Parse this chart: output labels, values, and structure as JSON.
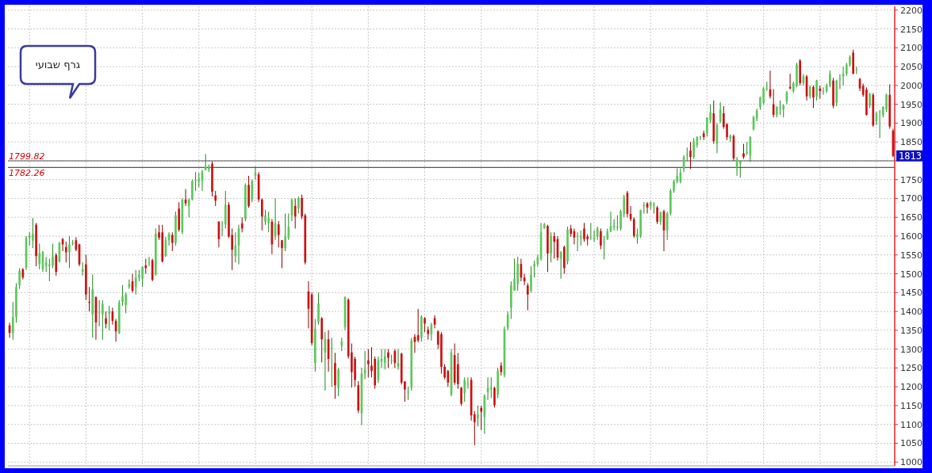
{
  "chart_data": {
    "type": "candlestick",
    "categories": [
      null,
      null,
      null,
      null,
      null,
      null,
      null,
      null,
      null,
      null,
      null,
      null,
      null,
      null,
      null,
      null,
      null,
      null,
      null,
      null,
      null,
      null,
      null,
      null,
      null,
      null,
      null,
      null,
      null,
      null,
      null,
      null,
      null,
      null,
      null,
      null,
      null,
      null,
      null,
      null,
      null,
      null,
      null,
      null,
      null,
      null,
      null,
      null,
      null,
      null,
      null,
      null,
      null,
      null,
      null,
      null,
      null,
      null,
      null,
      null,
      null,
      null,
      null,
      null,
      null,
      null,
      null,
      null,
      null,
      null,
      null,
      null,
      null,
      null,
      null,
      null,
      null,
      null,
      null,
      null,
      null,
      null,
      null,
      null,
      null,
      null,
      null,
      null,
      null,
      null,
      null,
      null,
      null,
      null,
      null,
      null,
      null,
      null,
      null,
      null,
      null,
      null,
      null,
      null,
      null,
      null,
      null,
      null,
      null,
      null,
      null,
      null,
      null,
      null,
      null,
      null,
      null,
      null,
      null,
      null,
      null,
      null,
      null,
      null,
      null,
      null,
      null,
      null,
      null,
      null,
      null,
      null,
      null,
      null,
      null,
      null,
      null,
      null,
      null,
      null,
      null,
      null,
      null,
      null,
      null,
      null,
      null,
      null,
      null,
      null,
      null,
      null,
      null,
      null,
      null,
      null,
      null,
      null,
      null,
      null,
      null,
      null,
      null,
      null,
      null,
      null,
      null,
      null,
      null,
      null,
      null,
      null,
      null,
      null,
      null,
      null,
      null,
      null,
      null,
      null,
      null,
      null,
      null,
      null,
      null,
      null,
      null,
      null,
      null,
      null,
      null,
      null,
      null,
      null,
      null,
      null,
      null,
      null,
      null,
      null,
      null,
      null,
      null,
      null,
      null,
      null,
      null,
      null,
      null,
      null,
      null,
      null,
      null,
      null,
      null,
      null,
      null,
      null,
      null,
      null,
      null,
      null,
      null,
      null,
      null,
      null,
      null,
      null,
      null,
      null,
      null,
      null,
      null,
      null,
      null,
      null,
      null,
      null,
      null,
      null,
      null,
      null,
      null,
      null,
      null,
      null,
      null,
      null,
      null,
      null,
      null,
      null,
      null,
      null,
      null,
      null,
      null,
      null,
      null,
      null,
      null,
      null,
      null,
      null,
      null,
      null,
      null
    ],
    "ohlc": [
      [
        1363,
        1370,
        1330,
        1343
      ],
      [
        1343,
        1425,
        1325,
        1385
      ],
      [
        1385,
        1475,
        1370,
        1465
      ],
      [
        1470,
        1515,
        1460,
        1508
      ],
      [
        1512,
        1515,
        1485,
        1490
      ],
      [
        1516,
        1600,
        1510,
        1596
      ],
      [
        1596,
        1610,
        1575,
        1600
      ],
      [
        1588,
        1648,
        1568,
        1606
      ],
      [
        1630,
        1635,
        1520,
        1547
      ],
      [
        1525,
        1580,
        1512,
        1555
      ],
      [
        1512,
        1560,
        1505,
        1558
      ],
      [
        1520,
        1545,
        1505,
        1530
      ],
      [
        1520,
        1540,
        1480,
        1525
      ],
      [
        1522,
        1580,
        1515,
        1546
      ],
      [
        1550,
        1555,
        1495,
        1505
      ],
      [
        1532,
        1585,
        1530,
        1582
      ],
      [
        1592,
        1595,
        1560,
        1578
      ],
      [
        1571,
        1585,
        1530,
        1557
      ],
      [
        1557,
        1600,
        1515,
        1578
      ],
      [
        1580,
        1590,
        1575,
        1583
      ],
      [
        1589,
        1597,
        1560,
        1564
      ],
      [
        1578,
        1580,
        1520,
        1525
      ],
      [
        1505,
        1530,
        1495,
        1512
      ],
      [
        1525,
        1550,
        1430,
        1445
      ],
      [
        1425,
        1465,
        1400,
        1423
      ],
      [
        1392,
        1498,
        1330,
        1459
      ],
      [
        1438,
        1440,
        1325,
        1371
      ],
      [
        1396,
        1430,
        1360,
        1397
      ],
      [
        1392,
        1430,
        1325,
        1420
      ],
      [
        1382,
        1400,
        1355,
        1367
      ],
      [
        1394,
        1415,
        1350,
        1400
      ],
      [
        1400,
        1410,
        1365,
        1375
      ],
      [
        1375,
        1380,
        1320,
        1347
      ],
      [
        1343,
        1430,
        1340,
        1424
      ],
      [
        1425,
        1470,
        1415,
        1440
      ],
      [
        1417,
        1450,
        1395,
        1445
      ],
      [
        1466,
        1485,
        1460,
        1473
      ],
      [
        1480,
        1500,
        1450,
        1455
      ],
      [
        1466,
        1510,
        1445,
        1490
      ],
      [
        1490,
        1510,
        1480,
        1497
      ],
      [
        1487,
        1520,
        1465,
        1518
      ],
      [
        1522,
        1540,
        1500,
        1515
      ],
      [
        1528,
        1545,
        1520,
        1530
      ],
      [
        1536,
        1540,
        1480,
        1484
      ],
      [
        1498,
        1620,
        1495,
        1606
      ],
      [
        1610,
        1630,
        1590,
        1596
      ],
      [
        1610,
        1630,
        1530,
        1533
      ],
      [
        1547,
        1598,
        1545,
        1589
      ],
      [
        1589,
        1610,
        1575,
        1606
      ],
      [
        1603,
        1610,
        1560,
        1582
      ],
      [
        1582,
        1665,
        1575,
        1655
      ],
      [
        1673,
        1690,
        1612,
        1617
      ],
      [
        1610,
        1700,
        1605,
        1697
      ],
      [
        1697,
        1725,
        1680,
        1687
      ],
      [
        1680,
        1700,
        1650,
        1697
      ],
      [
        1697,
        1750,
        1695,
        1746
      ],
      [
        1746,
        1770,
        1720,
        1750
      ],
      [
        1746,
        1768,
        1730,
        1752
      ],
      [
        1746,
        1776,
        1720,
        1771
      ],
      [
        1775,
        1818,
        1775,
        1784
      ],
      [
        1778,
        1790,
        1770,
        1784
      ],
      [
        1792,
        1798,
        1705,
        1718
      ],
      [
        1708,
        1720,
        1680,
        1694
      ],
      [
        1638,
        1640,
        1570,
        1592
      ],
      [
        1617,
        1640,
        1600,
        1618
      ],
      [
        1631,
        1720,
        1620,
        1683
      ],
      [
        1683,
        1690,
        1595,
        1599
      ],
      [
        1603,
        1620,
        1510,
        1564
      ],
      [
        1547,
        1610,
        1530,
        1575
      ],
      [
        1575,
        1630,
        1525,
        1620
      ],
      [
        1634,
        1650,
        1610,
        1620
      ],
      [
        1645,
        1740,
        1640,
        1736
      ],
      [
        1736,
        1760,
        1675,
        1680
      ],
      [
        1697,
        1750,
        1690,
        1746
      ],
      [
        1760,
        1785,
        1750,
        1768
      ],
      [
        1764,
        1770,
        1690,
        1697
      ],
      [
        1697,
        1700,
        1615,
        1652
      ],
      [
        1638,
        1670,
        1630,
        1655
      ],
      [
        1634,
        1665,
        1610,
        1648
      ],
      [
        1638,
        1645,
        1552,
        1578
      ],
      [
        1599,
        1700,
        1590,
        1634
      ],
      [
        1631,
        1640,
        1570,
        1603
      ],
      [
        1589,
        1590,
        1515,
        1568
      ],
      [
        1568,
        1660,
        1560,
        1599
      ],
      [
        1596,
        1660,
        1590,
        1624
      ],
      [
        1655,
        1700,
        1640,
        1697
      ],
      [
        1680,
        1700,
        1620,
        1652
      ],
      [
        1673,
        1705,
        1660,
        1701
      ],
      [
        1701,
        1710,
        1645,
        1652
      ],
      [
        1655,
        1660,
        1525,
        1530
      ],
      [
        1453,
        1480,
        1355,
        1407
      ],
      [
        1445,
        1450,
        1310,
        1316
      ],
      [
        1263,
        1380,
        1240,
        1354
      ],
      [
        1372,
        1450,
        1365,
        1421
      ],
      [
        1382,
        1385,
        1265,
        1326
      ],
      [
        1291,
        1345,
        1190,
        1326
      ],
      [
        1326,
        1350,
        1240,
        1274
      ],
      [
        1302,
        1330,
        1200,
        1303
      ],
      [
        1263,
        1290,
        1168,
        1204
      ],
      [
        1197,
        1250,
        1175,
        1246
      ],
      [
        1309,
        1330,
        1295,
        1320
      ],
      [
        1358,
        1440,
        1350,
        1438
      ],
      [
        1431,
        1435,
        1275,
        1281
      ],
      [
        1291,
        1315,
        1198,
        1239
      ],
      [
        1274,
        1280,
        1200,
        1218
      ],
      [
        1204,
        1215,
        1130,
        1137
      ],
      [
        1130,
        1250,
        1098,
        1235
      ],
      [
        1235,
        1295,
        1220,
        1246
      ],
      [
        1270,
        1300,
        1225,
        1260
      ],
      [
        1256,
        1305,
        1225,
        1242
      ],
      [
        1274,
        1280,
        1195,
        1204
      ],
      [
        1218,
        1280,
        1210,
        1270
      ],
      [
        1267,
        1300,
        1250,
        1274
      ],
      [
        1263,
        1300,
        1246,
        1281
      ],
      [
        1291,
        1300,
        1250,
        1277
      ],
      [
        1270,
        1285,
        1260,
        1271
      ],
      [
        1295,
        1300,
        1250,
        1263
      ],
      [
        1253,
        1300,
        1245,
        1263
      ],
      [
        1288,
        1290,
        1206,
        1211
      ],
      [
        1214,
        1215,
        1160,
        1193
      ],
      [
        1186,
        1200,
        1165,
        1187
      ],
      [
        1197,
        1330,
        1190,
        1323
      ],
      [
        1333,
        1340,
        1290,
        1319
      ],
      [
        1337,
        1407,
        1318,
        1323
      ],
      [
        1330,
        1390,
        1320,
        1386
      ],
      [
        1382,
        1385,
        1345,
        1368
      ],
      [
        1351,
        1360,
        1325,
        1340
      ],
      [
        1340,
        1370,
        1323,
        1365
      ],
      [
        1382,
        1390,
        1355,
        1365
      ],
      [
        1347,
        1350,
        1300,
        1312
      ],
      [
        1340,
        1345,
        1235,
        1253
      ],
      [
        1253,
        1260,
        1220,
        1225
      ],
      [
        1242,
        1245,
        1200,
        1211
      ],
      [
        1179,
        1300,
        1175,
        1291
      ],
      [
        1284,
        1315,
        1205,
        1211
      ],
      [
        1260,
        1290,
        1195,
        1207
      ],
      [
        1197,
        1200,
        1150,
        1155
      ],
      [
        1183,
        1225,
        1160,
        1218
      ],
      [
        1207,
        1225,
        1195,
        1208
      ],
      [
        1218,
        1225,
        1110,
        1124
      ],
      [
        1127,
        1135,
        1045,
        1106
      ],
      [
        1116,
        1150,
        1095,
        1127
      ],
      [
        1144,
        1150,
        1085,
        1134
      ],
      [
        1120,
        1180,
        1075,
        1176
      ],
      [
        1186,
        1225,
        1165,
        1197
      ],
      [
        1193,
        1225,
        1170,
        1197
      ],
      [
        1197,
        1200,
        1145,
        1151
      ],
      [
        1179,
        1250,
        1170,
        1242
      ],
      [
        1256,
        1265,
        1230,
        1239
      ],
      [
        1231,
        1360,
        1225,
        1354
      ],
      [
        1357,
        1400,
        1350,
        1392
      ],
      [
        1410,
        1480,
        1380,
        1469
      ],
      [
        1455,
        1540,
        1455,
        1487
      ],
      [
        1473,
        1545,
        1455,
        1526
      ],
      [
        1526,
        1540,
        1480,
        1490
      ],
      [
        1490,
        1500,
        1470,
        1480
      ],
      [
        1469,
        1475,
        1403,
        1445
      ],
      [
        1455,
        1520,
        1450,
        1497
      ],
      [
        1519,
        1535,
        1490,
        1526
      ],
      [
        1526,
        1550,
        1520,
        1543
      ],
      [
        1540,
        1635,
        1535,
        1610
      ],
      [
        1620,
        1635,
        1620,
        1631
      ],
      [
        1627,
        1630,
        1505,
        1554
      ],
      [
        1554,
        1610,
        1530,
        1600
      ],
      [
        1600,
        1610,
        1540,
        1585
      ],
      [
        1592,
        1600,
        1535,
        1543
      ],
      [
        1540,
        1560,
        1487,
        1557
      ],
      [
        1571,
        1575,
        1500,
        1515
      ],
      [
        1533,
        1625,
        1525,
        1617
      ],
      [
        1620,
        1630,
        1598,
        1606
      ],
      [
        1613,
        1620,
        1578,
        1596
      ],
      [
        1598,
        1610,
        1560,
        1600
      ],
      [
        1596,
        1615,
        1575,
        1599
      ],
      [
        1620,
        1635,
        1585,
        1592
      ],
      [
        1599,
        1605,
        1575,
        1592
      ],
      [
        1596,
        1635,
        1590,
        1597
      ],
      [
        1592,
        1615,
        1585,
        1596
      ],
      [
        1599,
        1625,
        1590,
        1620
      ],
      [
        1613,
        1620,
        1565,
        1575
      ],
      [
        1585,
        1600,
        1538,
        1586
      ],
      [
        1592,
        1620,
        1590,
        1613
      ],
      [
        1613,
        1665,
        1610,
        1627
      ],
      [
        1624,
        1645,
        1615,
        1628
      ],
      [
        1624,
        1655,
        1615,
        1625
      ],
      [
        1620,
        1670,
        1615,
        1666
      ],
      [
        1659,
        1710,
        1650,
        1704
      ],
      [
        1715,
        1720,
        1650,
        1659
      ],
      [
        1659,
        1680,
        1640,
        1645
      ],
      [
        1645,
        1650,
        1595,
        1600
      ],
      [
        1596,
        1620,
        1580,
        1606
      ],
      [
        1599,
        1670,
        1595,
        1669
      ],
      [
        1680,
        1690,
        1660,
        1683
      ],
      [
        1687,
        1690,
        1660,
        1676
      ],
      [
        1680,
        1692,
        1670,
        1690
      ],
      [
        1683,
        1690,
        1660,
        1684
      ],
      [
        1676,
        1680,
        1632,
        1638
      ],
      [
        1638,
        1665,
        1630,
        1663
      ],
      [
        1666,
        1670,
        1560,
        1615
      ],
      [
        1615,
        1665,
        1590,
        1660
      ],
      [
        1660,
        1725,
        1655,
        1720
      ],
      [
        1720,
        1750,
        1715,
        1745
      ],
      [
        1745,
        1780,
        1740,
        1760
      ],
      [
        1744,
        1780,
        1740,
        1768
      ],
      [
        1778,
        1815,
        1770,
        1810
      ],
      [
        1815,
        1835,
        1800,
        1817
      ],
      [
        1827,
        1850,
        1778,
        1810
      ],
      [
        1810,
        1860,
        1805,
        1852
      ],
      [
        1842,
        1865,
        1835,
        1863
      ],
      [
        1862,
        1866,
        1855,
        1864
      ],
      [
        1873,
        1880,
        1855,
        1863
      ],
      [
        1873,
        1915,
        1865,
        1915
      ],
      [
        1908,
        1950,
        1900,
        1929
      ],
      [
        1926,
        1960,
        1845,
        1852
      ],
      [
        1845,
        1900,
        1820,
        1894
      ],
      [
        1905,
        1955,
        1900,
        1936
      ],
      [
        1926,
        1945,
        1885,
        1890
      ],
      [
        1897,
        1900,
        1855,
        1863
      ],
      [
        1859,
        1870,
        1850,
        1866
      ],
      [
        1866,
        1870,
        1800,
        1806
      ],
      [
        1782,
        1810,
        1760,
        1803
      ],
      [
        1792,
        1800,
        1755,
        1798
      ],
      [
        1820,
        1845,
        1805,
        1810
      ],
      [
        1822,
        1850,
        1815,
        1823
      ],
      [
        1814,
        1865,
        1797,
        1863
      ],
      [
        1884,
        1920,
        1880,
        1915
      ],
      [
        1912,
        1938,
        1905,
        1933
      ],
      [
        1943,
        1970,
        1935,
        1968
      ],
      [
        1954,
        1995,
        1950,
        1992
      ],
      [
        1992,
        2010,
        1985,
        1993
      ],
      [
        1989,
        2039,
        1965,
        1971
      ],
      [
        1950,
        1990,
        1915,
        1922
      ],
      [
        1922,
        1945,
        1915,
        1943
      ],
      [
        1940,
        1960,
        1922,
        1941
      ],
      [
        1936,
        1950,
        1915,
        1947
      ],
      [
        1957,
        1985,
        1950,
        1982
      ],
      [
        1996,
        2031,
        1990,
        1992
      ],
      [
        1985,
        2010,
        1980,
        2006
      ],
      [
        1999,
        2060,
        1995,
        2055
      ],
      [
        2066,
        2070,
        2000,
        2006
      ],
      [
        2006,
        2030,
        2000,
        2024
      ],
      [
        2024,
        2028,
        1960,
        1971
      ],
      [
        1971,
        2000,
        1965,
        1996
      ],
      [
        1996,
        2000,
        1940,
        1968
      ],
      [
        1971,
        2015,
        1960,
        2013
      ],
      [
        1992,
        2000,
        1965,
        1985
      ],
      [
        1985,
        1995,
        1975,
        1986
      ],
      [
        1985,
        2005,
        1980,
        2000
      ],
      [
        2000,
        2040,
        1995,
        2031
      ],
      [
        2013,
        2020,
        1940,
        1946
      ],
      [
        1953,
        2015,
        1945,
        2013
      ],
      [
        2017,
        2030,
        1990,
        2018
      ],
      [
        2024,
        2050,
        2000,
        2031
      ],
      [
        2031,
        2060,
        2025,
        2055
      ],
      [
        2055,
        2080,
        2050,
        2076
      ],
      [
        2087,
        2095,
        2030,
        2031
      ],
      [
        2041,
        2050,
        2030,
        2042
      ],
      [
        2017,
        2020,
        1985,
        1992
      ],
      [
        1999,
        2005,
        1970,
        1975
      ],
      [
        1989,
        1995,
        1920,
        1922
      ],
      [
        1946,
        1980,
        1940,
        1978
      ],
      [
        1975,
        1980,
        1890,
        1894
      ],
      [
        1905,
        1930,
        1895,
        1926
      ],
      [
        1929,
        1935,
        1860,
        1930
      ],
      [
        1922,
        1945,
        1915,
        1943
      ],
      [
        1936,
        1978,
        1930,
        1975
      ],
      [
        1975,
        2003,
        1885,
        1891
      ],
      [
        1880,
        1885,
        1810,
        1813
      ]
    ],
    "ylim": [
      990,
      2210
    ],
    "yticks": [
      1000,
      1050,
      1100,
      1150,
      1200,
      1250,
      1300,
      1350,
      1400,
      1450,
      1500,
      1550,
      1600,
      1650,
      1700,
      1750,
      {
        "value": 1800,
        "label": null
      },
      1850,
      1900,
      1950,
      2000,
      2050,
      2100,
      2150,
      2200
    ],
    "tick_labels": "y",
    "grid": true,
    "ref_lines": [
      {
        "axis": "y",
        "value": 1799.82,
        "label": "1799.82",
        "color": "#555555"
      },
      {
        "axis": "y",
        "value": 1782.26,
        "label": "1782.26",
        "color": "#555555"
      }
    ],
    "annotations": [
      "גרף שבועי",
      {
        "text": "1813",
        "y": 1813
      }
    ]
  }
}
